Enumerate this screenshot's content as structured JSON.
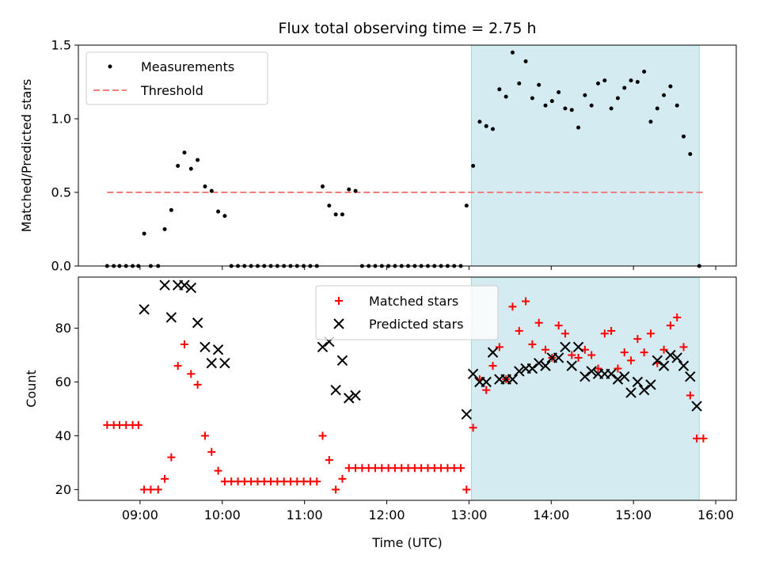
{
  "chart_data": [
    {
      "type": "scatter",
      "panel": "top",
      "title": "Flux total observing time = 2.75 h",
      "ylabel": "Matched/Predicted stars",
      "xlabel": "",
      "x_unit": "hours UTC",
      "xlim": [
        8.25,
        16.25
      ],
      "ylim": [
        0,
        1.5
      ],
      "yticks": [
        0.0,
        0.5,
        1.0,
        1.5
      ],
      "ytick_labels": [
        "0.0",
        "0.5",
        "1.0",
        "1.5"
      ],
      "xticks": [
        9,
        10,
        11,
        12,
        13,
        14,
        15,
        16
      ],
      "legend_position": "upper-left",
      "shaded_region": {
        "x0": 13.03,
        "x1": 15.8,
        "color": "#d4ebf1"
      },
      "threshold": {
        "name": "Threshold",
        "value": 0.5,
        "x0": 8.6,
        "x1": 15.87,
        "color": "#f47d7d"
      },
      "series": [
        {
          "name": "Measurements",
          "marker": "dot",
          "color": "#000000",
          "points": [
            [
              8.6,
              0
            ],
            [
              8.68,
              0
            ],
            [
              8.75,
              0
            ],
            [
              8.83,
              0
            ],
            [
              8.91,
              0
            ],
            [
              8.98,
              0
            ],
            [
              9.05,
              0.22
            ],
            [
              9.13,
              0
            ],
            [
              9.22,
              0
            ],
            [
              9.3,
              0.25
            ],
            [
              9.38,
              0.38
            ],
            [
              9.46,
              0.68
            ],
            [
              9.54,
              0.77
            ],
            [
              9.62,
              0.66
            ],
            [
              9.7,
              0.72
            ],
            [
              9.79,
              0.54
            ],
            [
              9.87,
              0.51
            ],
            [
              9.95,
              0.37
            ],
            [
              10.03,
              0.34
            ],
            [
              10.11,
              0
            ],
            [
              10.19,
              0
            ],
            [
              10.27,
              0
            ],
            [
              10.35,
              0
            ],
            [
              10.43,
              0
            ],
            [
              10.51,
              0
            ],
            [
              10.59,
              0
            ],
            [
              10.67,
              0
            ],
            [
              10.75,
              0
            ],
            [
              10.83,
              0
            ],
            [
              10.91,
              0
            ],
            [
              10.99,
              0
            ],
            [
              11.07,
              0
            ],
            [
              11.15,
              0
            ],
            [
              11.22,
              0.54
            ],
            [
              11.3,
              0.41
            ],
            [
              11.38,
              0.35
            ],
            [
              11.46,
              0.35
            ],
            [
              11.54,
              0.52
            ],
            [
              11.62,
              0.51
            ],
            [
              11.7,
              0
            ],
            [
              11.78,
              0
            ],
            [
              11.86,
              0
            ],
            [
              11.94,
              0
            ],
            [
              12.02,
              0
            ],
            [
              12.1,
              0
            ],
            [
              12.18,
              0
            ],
            [
              12.26,
              0
            ],
            [
              12.34,
              0
            ],
            [
              12.42,
              0
            ],
            [
              12.5,
              0
            ],
            [
              12.58,
              0
            ],
            [
              12.66,
              0
            ],
            [
              12.74,
              0
            ],
            [
              12.82,
              0
            ],
            [
              12.9,
              0
            ],
            [
              12.97,
              0.41
            ],
            [
              13.05,
              0.68
            ],
            [
              13.13,
              0.98
            ],
            [
              13.21,
              0.95
            ],
            [
              13.29,
              0.93
            ],
            [
              13.37,
              1.2
            ],
            [
              13.45,
              1.15
            ],
            [
              13.53,
              1.45
            ],
            [
              13.61,
              1.24
            ],
            [
              13.69,
              1.39
            ],
            [
              13.77,
              1.14
            ],
            [
              13.85,
              1.23
            ],
            [
              13.93,
              1.09
            ],
            [
              14.01,
              1.12
            ],
            [
              14.09,
              1.18
            ],
            [
              14.17,
              1.07
            ],
            [
              14.25,
              1.06
            ],
            [
              14.33,
              0.94
            ],
            [
              14.41,
              1.16
            ],
            [
              14.49,
              1.09
            ],
            [
              14.57,
              1.24
            ],
            [
              14.65,
              1.26
            ],
            [
              14.73,
              1.07
            ],
            [
              14.81,
              1.14
            ],
            [
              14.89,
              1.21
            ],
            [
              14.97,
              1.26
            ],
            [
              15.05,
              1.25
            ],
            [
              15.13,
              1.32
            ],
            [
              15.21,
              0.98
            ],
            [
              15.29,
              1.07
            ],
            [
              15.37,
              1.16
            ],
            [
              15.45,
              1.22
            ],
            [
              15.53,
              1.09
            ],
            [
              15.61,
              0.88
            ],
            [
              15.69,
              0.76
            ],
            [
              15.8,
              0
            ]
          ]
        }
      ]
    },
    {
      "type": "scatter",
      "panel": "bottom",
      "title": "",
      "ylabel": "Count",
      "xlabel": "Time (UTC)",
      "x_unit": "hours UTC",
      "xlim": [
        8.25,
        16.25
      ],
      "ylim": [
        16,
        99
      ],
      "yticks": [
        20,
        40,
        60,
        80
      ],
      "ytick_labels": [
        "20",
        "40",
        "60",
        "80"
      ],
      "xticks": [
        9,
        10,
        11,
        12,
        13,
        14,
        15,
        16
      ],
      "xtick_labels": [
        "09:00",
        "10:00",
        "11:00",
        "12:00",
        "13:00",
        "14:00",
        "15:00",
        "16:00"
      ],
      "legend_position": "upper-center",
      "shaded_region": {
        "x0": 13.03,
        "x1": 15.8,
        "color": "#d4ebf1"
      },
      "series": [
        {
          "name": "Matched stars",
          "marker": "plus",
          "color": "#ff0000",
          "points": [
            [
              8.6,
              44
            ],
            [
              8.68,
              44
            ],
            [
              8.75,
              44
            ],
            [
              8.83,
              44
            ],
            [
              8.91,
              44
            ],
            [
              8.98,
              44
            ],
            [
              9.05,
              20
            ],
            [
              9.13,
              20
            ],
            [
              9.22,
              20
            ],
            [
              9.3,
              24
            ],
            [
              9.38,
              32
            ],
            [
              9.46,
              66
            ],
            [
              9.54,
              74
            ],
            [
              9.62,
              63
            ],
            [
              9.7,
              59
            ],
            [
              9.79,
              40
            ],
            [
              9.87,
              34
            ],
            [
              9.95,
              27
            ],
            [
              10.03,
              23
            ],
            [
              10.11,
              23
            ],
            [
              10.19,
              23
            ],
            [
              10.27,
              23
            ],
            [
              10.35,
              23
            ],
            [
              10.43,
              23
            ],
            [
              10.51,
              23
            ],
            [
              10.59,
              23
            ],
            [
              10.67,
              23
            ],
            [
              10.75,
              23
            ],
            [
              10.83,
              23
            ],
            [
              10.91,
              23
            ],
            [
              10.99,
              23
            ],
            [
              11.07,
              23
            ],
            [
              11.15,
              23
            ],
            [
              11.22,
              40
            ],
            [
              11.3,
              31
            ],
            [
              11.38,
              20
            ],
            [
              11.46,
              24
            ],
            [
              11.54,
              28
            ],
            [
              11.62,
              28
            ],
            [
              11.7,
              28
            ],
            [
              11.78,
              28
            ],
            [
              11.86,
              28
            ],
            [
              11.94,
              28
            ],
            [
              12.02,
              28
            ],
            [
              12.1,
              28
            ],
            [
              12.18,
              28
            ],
            [
              12.26,
              28
            ],
            [
              12.34,
              28
            ],
            [
              12.42,
              28
            ],
            [
              12.5,
              28
            ],
            [
              12.58,
              28
            ],
            [
              12.66,
              28
            ],
            [
              12.74,
              28
            ],
            [
              12.82,
              28
            ],
            [
              12.9,
              28
            ],
            [
              12.97,
              20
            ],
            [
              13.05,
              43
            ],
            [
              13.13,
              61
            ],
            [
              13.21,
              57
            ],
            [
              13.29,
              66
            ],
            [
              13.37,
              73
            ],
            [
              13.45,
              61
            ],
            [
              13.53,
              88
            ],
            [
              13.61,
              79
            ],
            [
              13.69,
              90
            ],
            [
              13.77,
              74
            ],
            [
              13.85,
              82
            ],
            [
              13.93,
              72
            ],
            [
              14.01,
              69
            ],
            [
              14.09,
              81
            ],
            [
              14.17,
              78
            ],
            [
              14.25,
              70
            ],
            [
              14.33,
              69
            ],
            [
              14.41,
              72
            ],
            [
              14.49,
              70
            ],
            [
              14.57,
              65
            ],
            [
              14.65,
              78
            ],
            [
              14.73,
              79
            ],
            [
              14.81,
              65
            ],
            [
              14.89,
              71
            ],
            [
              14.97,
              68
            ],
            [
              15.05,
              76
            ],
            [
              15.13,
              71
            ],
            [
              15.21,
              78
            ],
            [
              15.29,
              67
            ],
            [
              15.37,
              72
            ],
            [
              15.45,
              81
            ],
            [
              15.53,
              84
            ],
            [
              15.61,
              73
            ],
            [
              15.69,
              55
            ],
            [
              15.77,
              39
            ],
            [
              15.85,
              39
            ]
          ]
        },
        {
          "name": "Predicted stars",
          "marker": "x",
          "color": "#000000",
          "points": [
            [
              9.05,
              87
            ],
            [
              9.3,
              96
            ],
            [
              9.38,
              84
            ],
            [
              9.46,
              96
            ],
            [
              9.54,
              96
            ],
            [
              9.62,
              95
            ],
            [
              9.7,
              82
            ],
            [
              9.79,
              73
            ],
            [
              9.87,
              67
            ],
            [
              9.95,
              72
            ],
            [
              10.03,
              67
            ],
            [
              11.22,
              73
            ],
            [
              11.3,
              75
            ],
            [
              11.38,
              57
            ],
            [
              11.46,
              68
            ],
            [
              11.54,
              54
            ],
            [
              11.62,
              55
            ],
            [
              12.97,
              48
            ],
            [
              13.05,
              63
            ],
            [
              13.13,
              60
            ],
            [
              13.21,
              60
            ],
            [
              13.29,
              71
            ],
            [
              13.37,
              61
            ],
            [
              13.45,
              61
            ],
            [
              13.53,
              61
            ],
            [
              13.61,
              64
            ],
            [
              13.69,
              65
            ],
            [
              13.77,
              65
            ],
            [
              13.85,
              67
            ],
            [
              13.93,
              66
            ],
            [
              14.01,
              69
            ],
            [
              14.09,
              69
            ],
            [
              14.17,
              73
            ],
            [
              14.25,
              66
            ],
            [
              14.33,
              73
            ],
            [
              14.41,
              62
            ],
            [
              14.49,
              64
            ],
            [
              14.57,
              63
            ],
            [
              14.65,
              63
            ],
            [
              14.73,
              63
            ],
            [
              14.81,
              61
            ],
            [
              14.89,
              62
            ],
            [
              14.97,
              56
            ],
            [
              15.05,
              60
            ],
            [
              15.13,
              57
            ],
            [
              15.21,
              59
            ],
            [
              15.29,
              68
            ],
            [
              15.37,
              66
            ],
            [
              15.45,
              70
            ],
            [
              15.53,
              69
            ],
            [
              15.61,
              66
            ],
            [
              15.69,
              62
            ],
            [
              15.77,
              51
            ]
          ]
        }
      ]
    }
  ]
}
